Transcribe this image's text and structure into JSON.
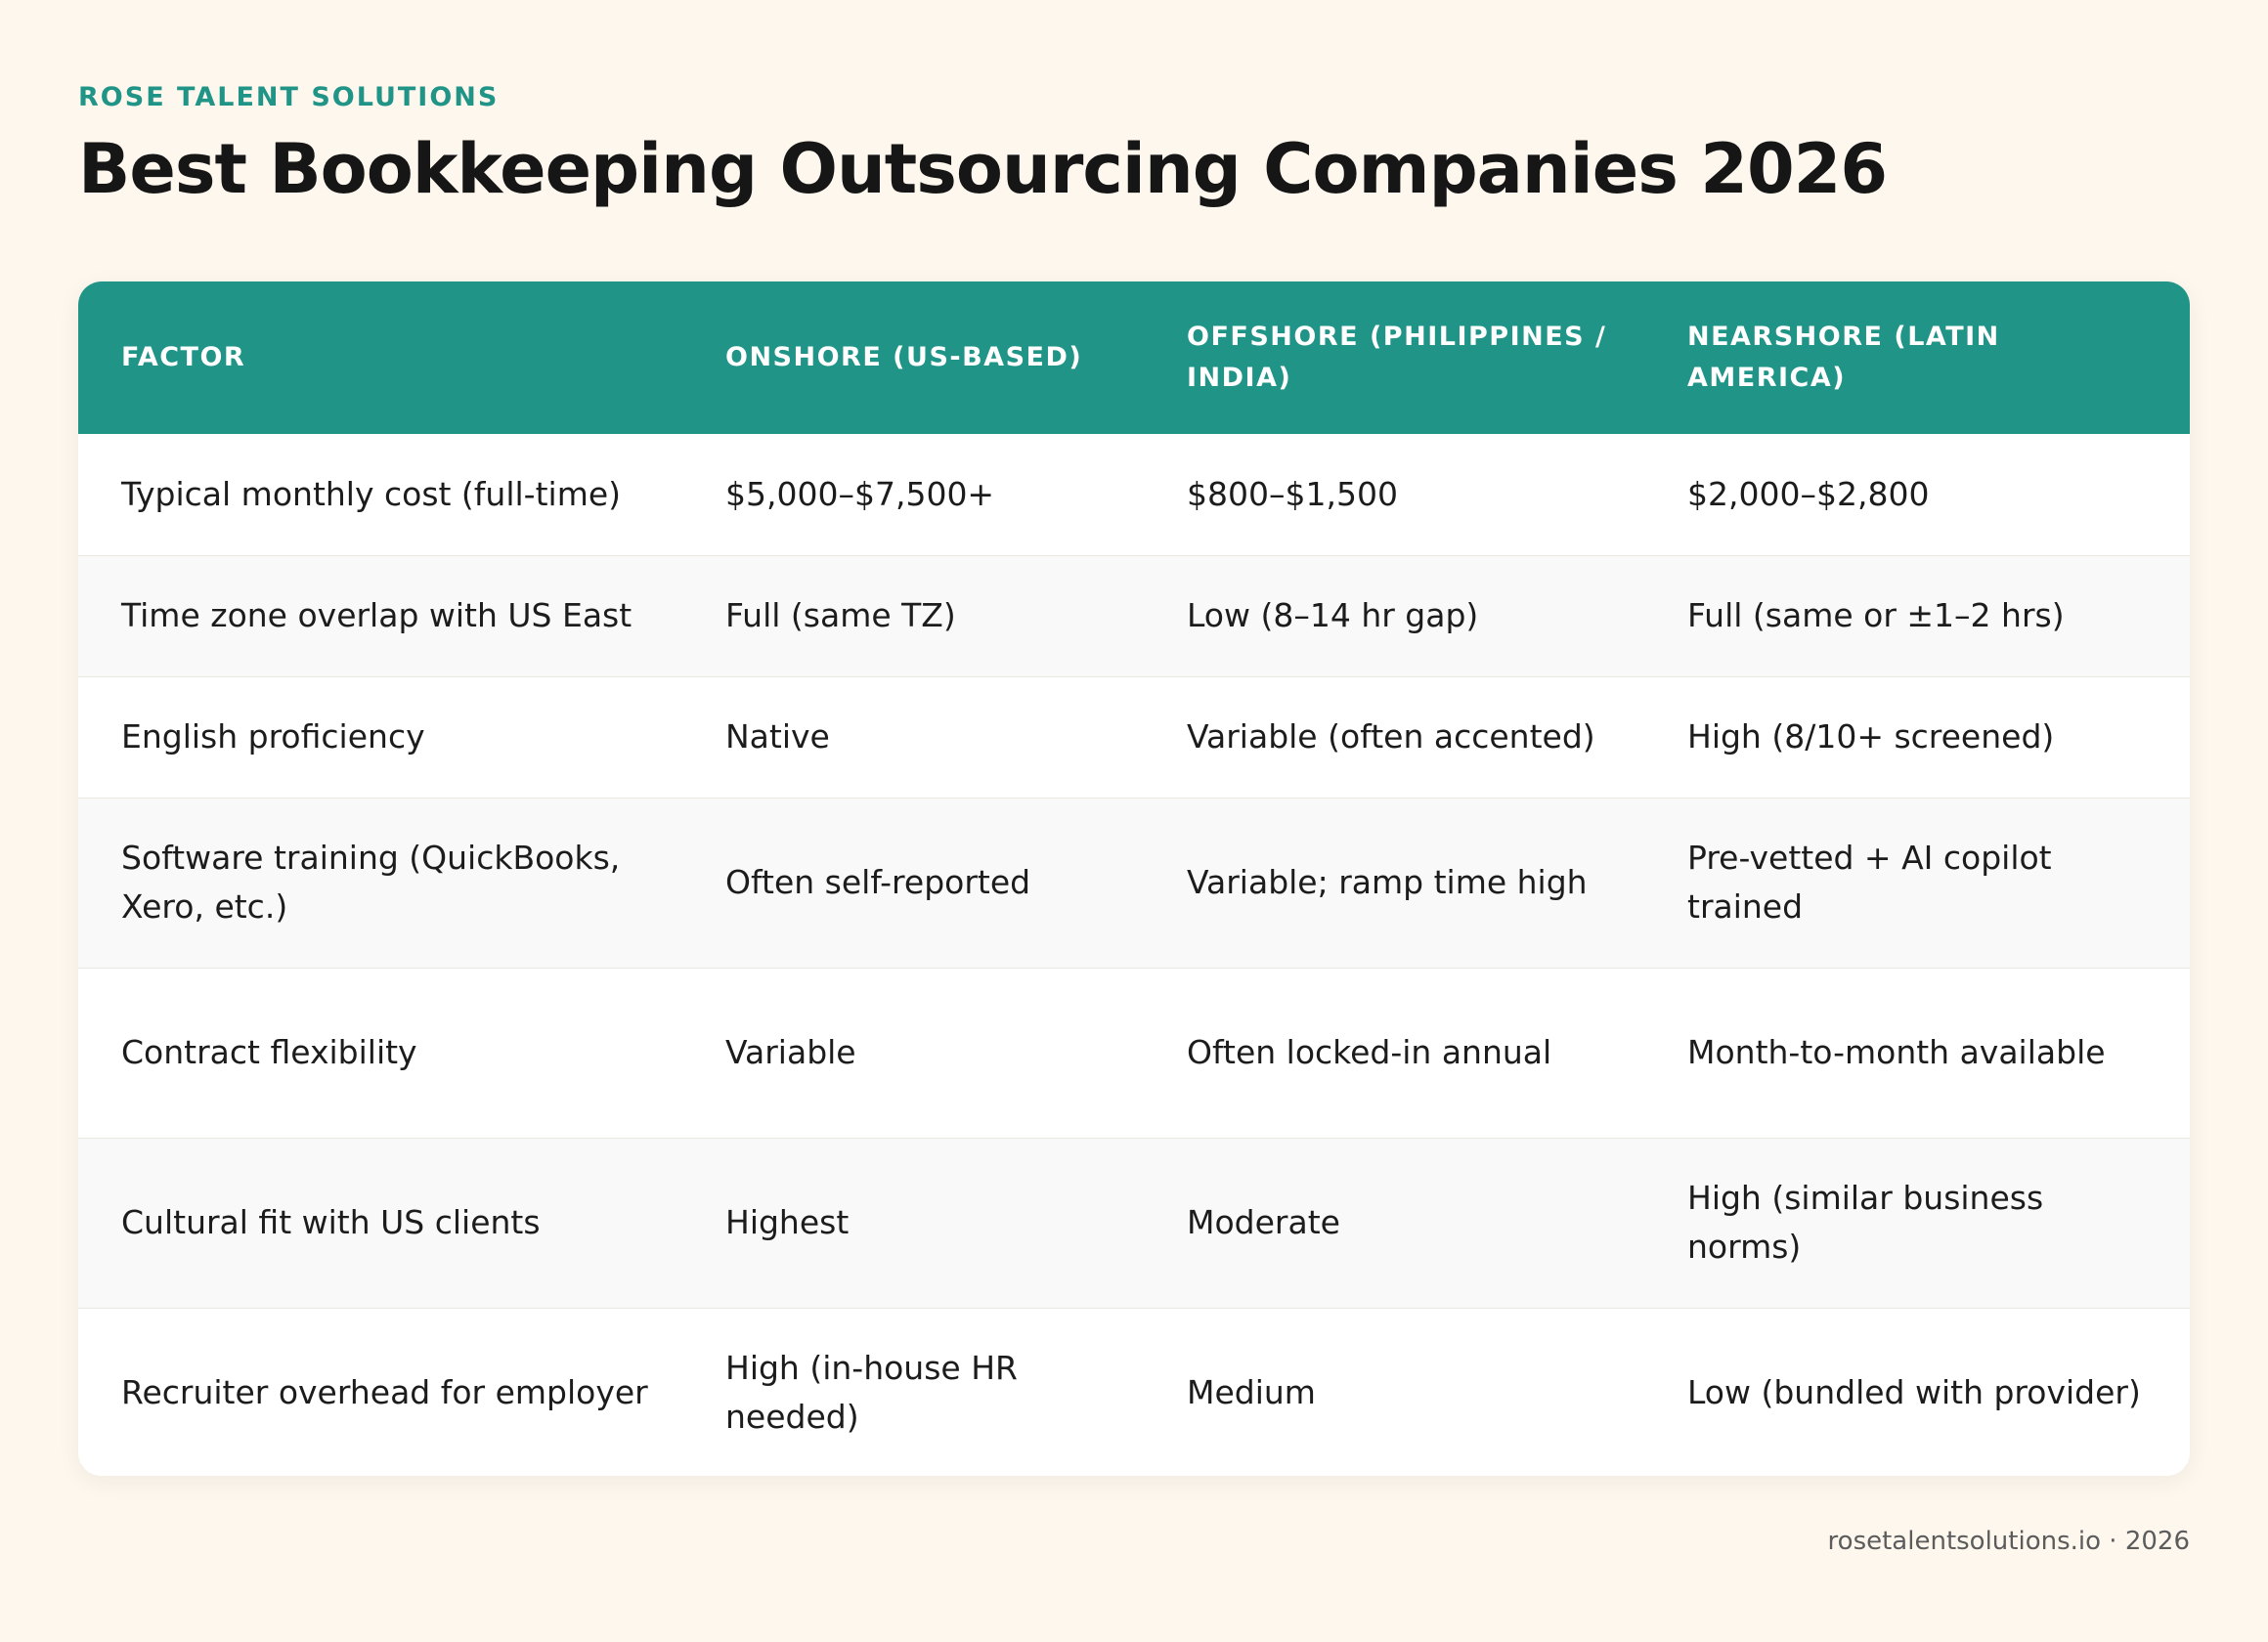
{
  "brand": "ROSE TALENT SOLUTIONS",
  "title": "Best Bookkeeping Outsourcing Companies 2026",
  "table": {
    "headers": [
      "FACTOR",
      "ONSHORE (US-BASED)",
      "OFFSHORE (PHILIPPINES / INDIA)",
      "NEARSHORE (LATIN AMERICA)"
    ],
    "rows": [
      [
        "Typical monthly cost (full-time)",
        "$5,000–$7,500+",
        "$800–$1,500",
        "$2,000–$2,800"
      ],
      [
        "Time zone overlap with US East",
        "Full (same TZ)",
        "Low (8–14 hr gap)",
        "Full (same or ±1–2 hrs)"
      ],
      [
        "English proficiency",
        "Native",
        "Variable (often accented)",
        "High (8/10+ screened)"
      ],
      [
        "Software training (QuickBooks, Xero, etc.)",
        "Often self-reported",
        "Variable; ramp time high",
        "Pre-vetted + AI copilot trained"
      ],
      [
        "Contract flexibility",
        "Variable",
        "Often locked-in annual",
        "Month-to-month available"
      ],
      [
        "Cultural fit with US clients",
        "Highest",
        "Moderate",
        "High (similar business norms)"
      ],
      [
        "Recruiter overhead for employer",
        "High (in-house HR needed)",
        "Medium",
        "Low (bundled with provider)"
      ]
    ]
  },
  "footer": "rosetalentsolutions.io · 2026"
}
